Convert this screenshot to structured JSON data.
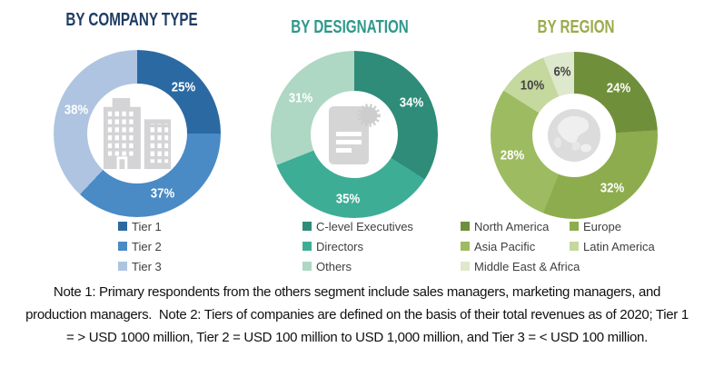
{
  "chart_data": [
    {
      "type": "pie",
      "donut": true,
      "title": "BY COMPANY TYPE",
      "title_color": "#1e3c63",
      "center_icon": "building-icon",
      "legend_columns": 1,
      "legend_position": "bottom",
      "slices": [
        {
          "label": "Tier 1",
          "value": 25,
          "color": "#2b69a3",
          "label_color": "#ffffff"
        },
        {
          "label": "Tier 2",
          "value": 37,
          "color": "#4a8ac5",
          "label_color": "#ffffff"
        },
        {
          "label": "Tier 3",
          "value": 38,
          "color": "#aec4e1",
          "label_color": "#ffffff"
        }
      ]
    },
    {
      "type": "pie",
      "donut": true,
      "title": "BY DESIGNATION",
      "title_color": "#2f988a",
      "center_icon": "document-badge-icon",
      "legend_columns": 1,
      "legend_position": "bottom",
      "slices": [
        {
          "label": "C-level Executives",
          "value": 34,
          "color": "#2e8c79",
          "label_color": "#ffffff"
        },
        {
          "label": "Directors",
          "value": 35,
          "color": "#3ead96",
          "label_color": "#ffffff"
        },
        {
          "label": "Others",
          "value": 31,
          "color": "#aed7c4",
          "label_color": "#ffffff"
        }
      ]
    },
    {
      "type": "pie",
      "donut": true,
      "title": "BY REGION",
      "title_color": "#9aab4c",
      "center_icon": "globe-icon",
      "legend_columns": 2,
      "legend_position": "bottom",
      "slices": [
        {
          "label": "North America",
          "value": 24,
          "color": "#6f8f3b",
          "label_color": "#ffffff"
        },
        {
          "label": "Europe",
          "value": 32,
          "color": "#8dac4d",
          "label_color": "#ffffff"
        },
        {
          "label": "Asia Pacific",
          "value": 28,
          "color": "#9dbb60",
          "label_color": "#ffffff"
        },
        {
          "label": "Latin America",
          "value": 10,
          "color": "#c5d89e",
          "label_color": "#454545"
        },
        {
          "label": "Middle East & Africa",
          "value": 6,
          "color": "#dee8cc",
          "label_color": "#454545"
        }
      ]
    }
  ],
  "notes": {
    "lines": [
      "Note 1: Primary respondents from the others segment include sales managers, marketing managers, and",
      "production managers.  Note 2: Tiers of companies are defined on the basis of their total revenues as of 2020; Tier 1",
      "= > USD 1000 million, Tier 2 = USD 100 million to USD 1,000 million, and Tier 3 = < USD 100 million."
    ]
  }
}
